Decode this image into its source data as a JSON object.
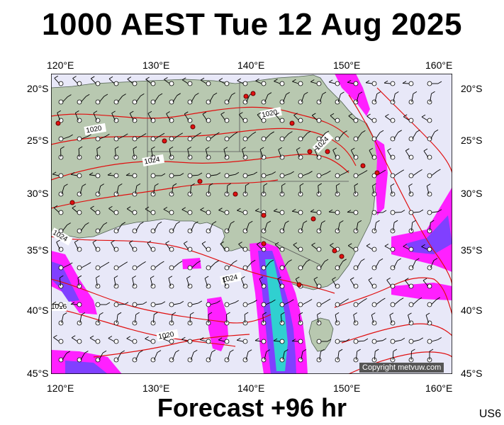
{
  "title": "1000 AEST Tue 12 Aug 2025",
  "footer": "Forecast +96 hr",
  "model_code": "US6",
  "copyright": "Copyright metvuw.com",
  "axes": {
    "lon_labels": [
      "120°E",
      "130°E",
      "140°E",
      "150°E",
      "160°E"
    ],
    "lat_labels": [
      "20°S",
      "25°S",
      "30°S",
      "35°S",
      "40°S",
      "45°S"
    ]
  },
  "isobars": {
    "labels": [
      "1020",
      "1020",
      "1024",
      "1024",
      "1024",
      "1024",
      "1020",
      "1016"
    ]
  },
  "colors": {
    "land": "#b8c8b0",
    "ocean": "#e8e8f8",
    "isobar": "#e01010",
    "precip_light": "#ff20ff",
    "precip_mid": "#8040ff",
    "precip_heavy": "#30d0d0"
  }
}
